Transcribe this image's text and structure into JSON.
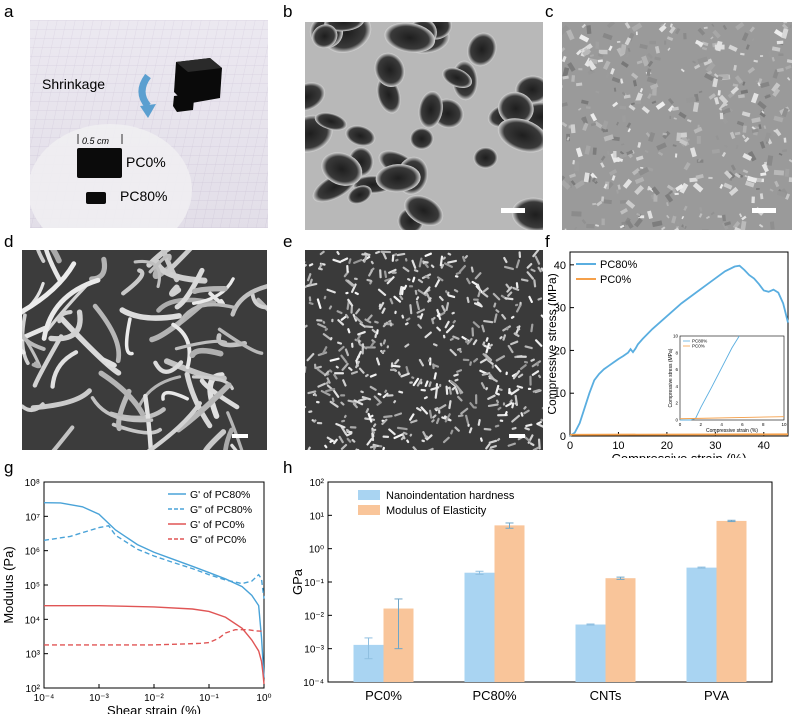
{
  "panel_labels": {
    "a": "a",
    "b": "b",
    "c": "c",
    "d": "d",
    "e": "e",
    "f": "f",
    "g": "g",
    "h": "h"
  },
  "photo": {
    "shrinkage": "Shrinkage",
    "scale": "0.5 cm",
    "pc0": "PC0%",
    "pc80": "PC80%"
  },
  "chart_data": [
    {
      "id": "f",
      "type": "line",
      "xlabel": "Compressive strain (%)",
      "ylabel": "Compressive stress (MPa)",
      "xlim": [
        0,
        45
      ],
      "ylim": [
        0,
        43
      ],
      "xticks": [
        "0",
        "10",
        "20",
        "30",
        "40"
      ],
      "yticks": [
        "0",
        "10",
        "20",
        "30",
        "40"
      ],
      "legend_position": "top-left",
      "series": [
        {
          "name": "PC80%",
          "color": "#5aaee0",
          "x": [
            0,
            1,
            2,
            3,
            4,
            5,
            6,
            7,
            8,
            9,
            10,
            11,
            12,
            12.5,
            13,
            13.5,
            14,
            15,
            17,
            20,
            23,
            26,
            29,
            32,
            34,
            35,
            36,
            37,
            38,
            39,
            40,
            41,
            42,
            43,
            44,
            45
          ],
          "y": [
            0,
            0.8,
            3,
            6.5,
            10,
            13,
            14.5,
            15.6,
            16.4,
            17.2,
            18,
            18.7,
            19.5,
            20.3,
            19.6,
            20.4,
            21.4,
            22.7,
            25,
            28,
            31,
            33.5,
            36,
            38.5,
            39.6,
            39.8,
            38.8,
            37.6,
            36.8,
            35.5,
            34,
            33.7,
            34.2,
            33.5,
            31,
            26.5
          ]
        },
        {
          "name": "PC0%",
          "color": "#f5a04a",
          "x": [
            0,
            45
          ],
          "y": [
            0.3,
            0.4
          ]
        }
      ],
      "inset": {
        "xlabel": "Compressive strain (%)",
        "ylabel": "Compressive stress (MPa)",
        "xlim": [
          0,
          10
        ],
        "ylim": [
          0,
          10
        ],
        "xticks": [
          "0",
          "2",
          "4",
          "6",
          "8",
          "10"
        ],
        "yticks": [
          "0",
          "2",
          "4",
          "6",
          "8",
          "10"
        ],
        "series": [
          {
            "name": "PC80%",
            "color": "#5aaee0",
            "x": [
              0,
              1,
              1.5,
              2,
              3,
              4,
              5,
              5.7
            ],
            "y": [
              0,
              0,
              0.2,
              1.5,
              3.8,
              6.2,
              8.6,
              10
            ]
          },
          {
            "name": "PC0%",
            "color": "#f5a04a",
            "x": [
              0,
              10
            ],
            "y": [
              0.15,
              0.4
            ]
          }
        ]
      }
    },
    {
      "id": "g",
      "type": "line",
      "xlabel": "Shear strain (%)",
      "ylabel": "Modulus (Pa)",
      "xscale": "log",
      "yscale": "log",
      "xlim": [
        0.0001,
        1
      ],
      "ylim": [
        100,
        100000000
      ],
      "xticks": [
        "10⁻⁴",
        "10⁻³",
        "10⁻²",
        "10⁻¹",
        "10⁰"
      ],
      "yticks": [
        "10²",
        "10³",
        "10⁴",
        "10⁵",
        "10⁶",
        "10⁷",
        "10⁸"
      ],
      "legend_position": "top-right",
      "series": [
        {
          "name": "G' of PC80%",
          "color": "#4aa3d8",
          "dash": false,
          "x": [
            0.0001,
            0.0002,
            0.0005,
            0.001,
            0.002,
            0.005,
            0.01,
            0.02,
            0.05,
            0.1,
            0.2,
            0.4,
            0.6,
            0.8,
            0.9,
            1
          ],
          "y": [
            25000000,
            24500000,
            19000000,
            11500000,
            4000000,
            1500000,
            900000,
            600000,
            350000,
            230000,
            150000,
            90000,
            50000,
            25000,
            3000,
            200
          ]
        },
        {
          "name": "G\" of PC80%",
          "color": "#4aa3d8",
          "dash": true,
          "x": [
            0.0001,
            0.0003,
            0.001,
            0.0015,
            0.002,
            0.005,
            0.01,
            0.02,
            0.05,
            0.1,
            0.2,
            0.4,
            0.6,
            0.8,
            0.9,
            1
          ],
          "y": [
            2000000,
            2600000,
            4700000,
            5300000,
            2800000,
            1100000,
            700000,
            480000,
            300000,
            200000,
            140000,
            110000,
            130000,
            200000,
            150000,
            40000
          ]
        },
        {
          "name": "G' of PC0%",
          "color": "#e05555",
          "dash": false,
          "x": [
            0.0001,
            0.001,
            0.01,
            0.05,
            0.1,
            0.2,
            0.4,
            0.6,
            0.8,
            0.9,
            0.95,
            1
          ],
          "y": [
            25000,
            25000,
            23000,
            20000,
            17000,
            11500,
            5500,
            2500,
            1200,
            600,
            300,
            130
          ]
        },
        {
          "name": "G\" of PC0%",
          "color": "#e05555",
          "dash": true,
          "x": [
            0.0001,
            0.0005,
            0.001,
            0.005,
            0.01,
            0.03,
            0.07,
            0.1,
            0.15,
            0.2,
            0.3,
            0.5,
            0.7,
            1
          ],
          "y": [
            1800,
            1800,
            1800,
            1800,
            1800,
            1900,
            2000,
            2100,
            2800,
            4000,
            5000,
            5000,
            4600,
            4500
          ]
        }
      ]
    },
    {
      "id": "h",
      "type": "bar",
      "ylabel": "GPa",
      "yscale": "log",
      "ylim": [
        0.0001,
        100
      ],
      "yticks": [
        "10⁻⁴",
        "10⁻³",
        "10⁻²",
        "10⁻¹",
        "10⁰",
        "10¹",
        "10²"
      ],
      "categories": [
        "PC0%",
        "PC80%",
        "CNTs",
        "PVA"
      ],
      "legend_position": "top-left",
      "series": [
        {
          "name": "Nanoindentation hardness",
          "color": "#a9d4f2",
          "values": [
            0.0013,
            0.19,
            0.0053,
            0.27
          ],
          "err": [
            0.0008,
            0.02,
            0.0002,
            0.01
          ]
        },
        {
          "name": "Modulus of Elasticity",
          "color": "#f9c59a",
          "values": [
            0.016,
            5.0,
            0.13,
            6.8
          ],
          "err": [
            0.015,
            0.9,
            0.01,
            0.3
          ]
        }
      ]
    }
  ]
}
